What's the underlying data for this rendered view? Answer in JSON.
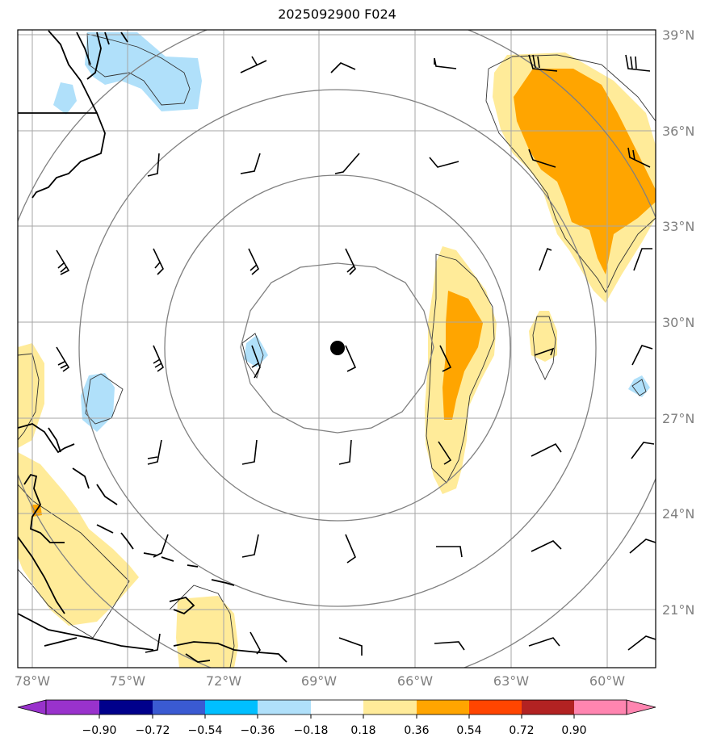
{
  "title": "2025092900 F024",
  "lat_labels": [
    "39°N",
    "36°N",
    "33°N",
    "30°N",
    "27°N",
    "24°N",
    "21°N"
  ],
  "lon_labels": [
    "78°W",
    "75°W",
    "72°W",
    "69°W",
    "66°W",
    "63°W",
    "60°W"
  ],
  "colorbar": {
    "ticks": [
      "−0.90",
      "−0.72",
      "−0.54",
      "−0.36",
      "−0.18",
      "0.18",
      "0.36",
      "0.54",
      "0.72",
      "0.90"
    ],
    "colors": [
      "#9932cc",
      "#00008b",
      "#3a5ad2",
      "#00bfff",
      "#b0e0fa",
      "#ffffff",
      "#ffeb99",
      "#ffa500",
      "#ff4500",
      "#b22222",
      "#ff85b0"
    ]
  },
  "fill_colors": {
    "light_blue": "#b0e0fa",
    "light_yellow": "#ffeb99",
    "orange": "#ffa500",
    "dark_orange": "#ff4500"
  },
  "center_marker": {
    "lat": 29.2,
    "lon": -68.6
  },
  "range_rings_km": [
    300,
    600,
    900,
    1200
  ]
}
